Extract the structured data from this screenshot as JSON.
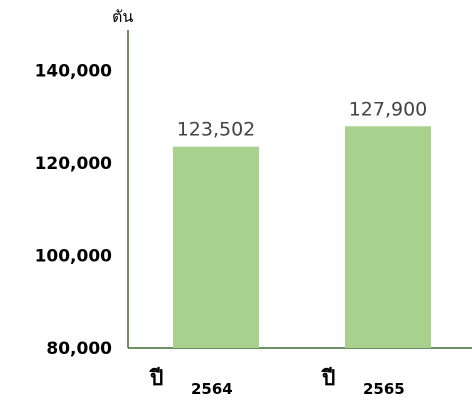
{
  "chart_data": {
    "type": "bar",
    "title": "",
    "xlabel": "",
    "ylabel": "ตัน",
    "categories": [
      {
        "main": "ปี",
        "sub": "2564"
      },
      {
        "main": "ปี",
        "sub": "2565"
      }
    ],
    "values": [
      123502,
      127900
    ],
    "value_labels": [
      "123,502",
      "127,900"
    ],
    "yticks": [
      80000,
      100000,
      120000,
      140000
    ],
    "ytick_labels": [
      "80,000",
      "100,000",
      "120,000",
      "140,000"
    ],
    "ylim": [
      80000,
      150000
    ],
    "grid": false,
    "legend": "none",
    "colors": {
      "bar": "#a9d18e",
      "axis": "#3f6b34"
    }
  }
}
